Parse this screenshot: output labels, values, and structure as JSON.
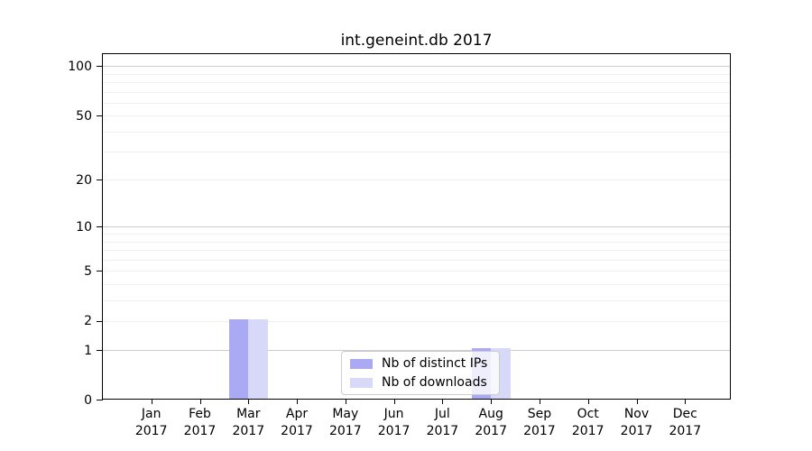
{
  "chart_data": {
    "type": "bar",
    "title": "int.geneint.db 2017",
    "categories": [
      "Jan",
      "Feb",
      "Mar",
      "Apr",
      "May",
      "Jun",
      "Jul",
      "Aug",
      "Sep",
      "Oct",
      "Nov",
      "Dec"
    ],
    "year_label": "2017",
    "series": [
      {
        "name": "Nb of distinct IPs",
        "color": "#a9a9f4",
        "values": [
          0,
          0,
          2,
          0,
          0,
          0,
          0,
          1,
          0,
          0,
          0,
          0
        ]
      },
      {
        "name": "Nb of downloads",
        "color": "#d8d8f8",
        "values": [
          0,
          0,
          2,
          0,
          0,
          0,
          0,
          1,
          0,
          0,
          0,
          0
        ]
      }
    ],
    "xlabel": "",
    "ylabel": "",
    "y_scale": "log1p",
    "y_ticks": [
      0,
      1,
      2,
      5,
      10,
      20,
      50,
      100
    ],
    "y_gridlines_major": [
      1,
      10,
      100
    ],
    "y_gridlines_minor": [
      2,
      3,
      4,
      5,
      6,
      7,
      8,
      9,
      20,
      30,
      40,
      50,
      60,
      70,
      80,
      90
    ],
    "ylim": [
      0,
      118
    ],
    "grid": true,
    "legend_position": "lower-center"
  },
  "colors": {
    "background": "#ffffff",
    "axis": "#000000",
    "grid_major": "#cccccc",
    "grid_minor": "#efefef",
    "legend_border": "#cccccc",
    "bar_distinct_ips": "#a9a9f4",
    "bar_downloads": "#d8d8f8"
  }
}
